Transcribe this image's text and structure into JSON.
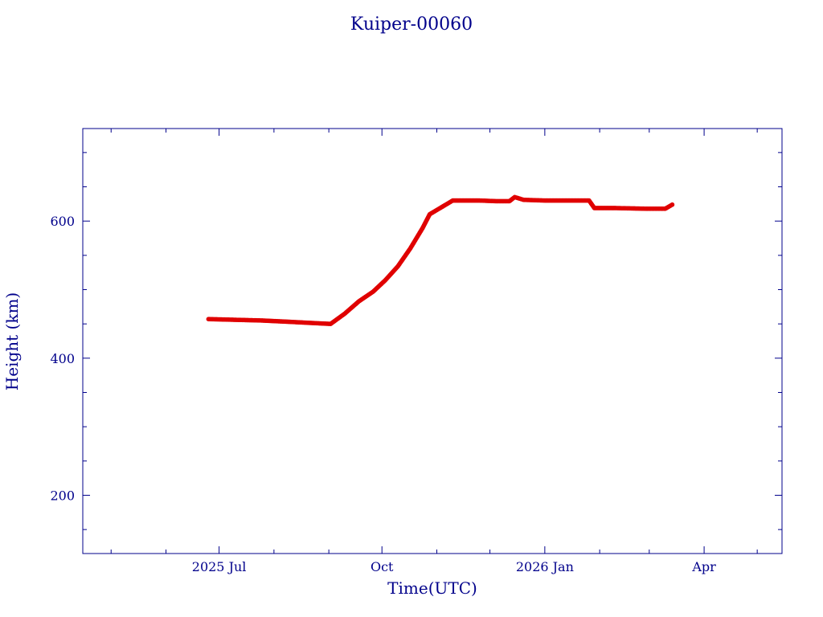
{
  "chart_data": {
    "type": "scatter",
    "title": "Kuiper-00060",
    "xlabel": "Time(UTC)",
    "ylabel": "Height (km)",
    "x_type": "date",
    "xlim": [
      "2025-04-15",
      "2026-05-15"
    ],
    "ylim": [
      115,
      735
    ],
    "x_ticks": [
      {
        "date": "2025-07-01",
        "label": "2025 Jul"
      },
      {
        "date": "2025-10-01",
        "label": "Oct"
      },
      {
        "date": "2026-01-01",
        "label": "2026 Jan"
      },
      {
        "date": "2026-04-01",
        "label": "Apr"
      }
    ],
    "x_minor_ticks": [
      "2025-05-01",
      "2025-06-01",
      "2025-08-01",
      "2025-09-01",
      "2025-11-01",
      "2025-12-01",
      "2026-02-01",
      "2026-03-01",
      "2026-05-01"
    ],
    "y_ticks": [
      200,
      400,
      600
    ],
    "y_minor_ticks": [
      150,
      250,
      300,
      350,
      450,
      500,
      550,
      650,
      700
    ],
    "grid": false,
    "series": [
      {
        "color": "#e00000",
        "x": [
          "2025-06-25",
          "2025-07-10",
          "2025-07-25",
          "2025-08-10",
          "2025-08-25",
          "2025-09-02",
          "2025-09-10",
          "2025-09-18",
          "2025-09-26",
          "2025-10-03",
          "2025-10-10",
          "2025-10-17",
          "2025-10-24",
          "2025-10-28",
          "2025-11-10",
          "2025-11-25",
          "2025-12-05",
          "2025-12-12",
          "2025-12-15",
          "2025-12-20",
          "2026-01-01",
          "2026-01-15",
          "2026-01-26",
          "2026-01-29",
          "2026-02-10",
          "2026-02-28",
          "2026-03-10",
          "2026-03-14"
        ],
        "y": [
          457,
          456,
          455,
          453,
          451,
          450,
          465,
          483,
          497,
          514,
          534,
          560,
          590,
          610,
          630,
          630,
          629,
          629,
          635,
          631,
          630,
          630,
          630,
          619,
          619,
          618,
          618,
          624
        ]
      }
    ]
  }
}
